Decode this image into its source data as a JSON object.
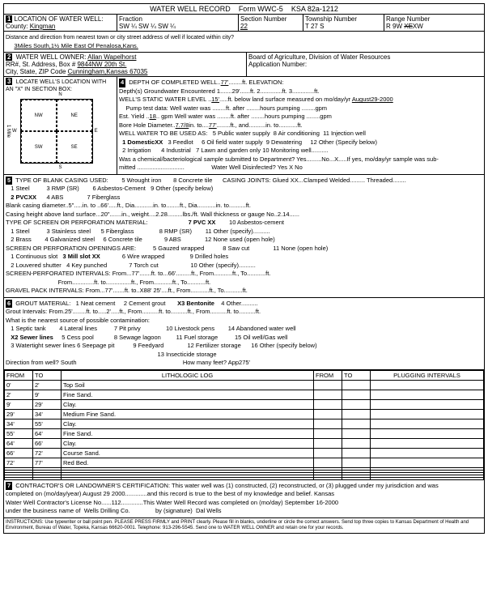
{
  "form_title": "WATER WELL RECORD",
  "form_id": "Form WWC-5",
  "ksa": "KSA 82a-1212",
  "location": {
    "county": "Kingman",
    "fraction": "SW ¼ SW ¼ SW ¼",
    "section": "22",
    "township": "T 27 S",
    "range": "R 9W",
    "direction_note": "3Miles South,1½ Mile East Of Penalosa,Kans."
  },
  "owner": {
    "name": "Allan Wapelhorst",
    "address": "9844NW 20th St.",
    "city": "Cunningham,Kansas 67035",
    "board": "Board of Agriculture, Division of Water Resources",
    "app_no": "Application Number:"
  },
  "section3_title": "LOCATE WELL'S LOCATION WITH AN \"X\" IN SECTION BOX:",
  "well_data": {
    "depth_completed": "77'",
    "elevation_note": "ft. ELEVATION:",
    "depths_gw": "1.......29'......ft. 2.............ft. 3.............ft.",
    "static_level": "15'",
    "static_date": "August29-2000",
    "pump_test": "Well water was ........ft. after ........hours pumping ........gpm",
    "est_yield": "18",
    "bore_dia": "7.7/8",
    "bore_to": "77'",
    "uses": {
      "u1": "1 DomesticXX",
      "u2": "2 Irrigation",
      "u3": "3 Feedlot",
      "u4": "4 Industrial",
      "u5": "5 Public water supply",
      "u6": "6 Oil field water supply",
      "u7": "7 Lawn and garden only",
      "u8": "8 Air conditioning",
      "u9": "9 Dewatering",
      "u10": "10 Monitoring well",
      "u11": "11 Injection well",
      "u12": "12 Other (Specify below)"
    },
    "chem_sample": "Was a chemical/bacteriological sample submitted to Department? Yes.........No...X.....If yes, mo/day/yr sample was sub-",
    "disinfected": "Water Well Disinfected? Yes X    No"
  },
  "casing": {
    "title": "TYPE OF BLANK CASING USED:",
    "c1": "1 Steel",
    "c2": "2 PVCXX",
    "c3": "3 RMP (SR)",
    "c4": "4 ABS",
    "c5": "5 Wrought iron",
    "c6": "6 Asbestos-Cement",
    "c7": "7 Fiberglass",
    "c8": "8 Concrete tile",
    "c9": "9 Other (specify below)",
    "joints": "CASING JOINTS: Glued XX...Clamped     Welded.........     Threaded........",
    "blank_dia": "Blank casing diameter..5\".....in. to ..66'.....ft., Dia...........in. to........ft., Dia...........in. to..........ft.",
    "height_weight": "Casing height above land surface...20\".......in., weight....2.28.........lbs./ft. Wall thickness or gauge No..2.14......",
    "screen_title": "TYPE OF SCREEN OR PERFORATION MATERIAL:",
    "s1": "1 Steel",
    "s2": "2 Brass",
    "s3": "3 Stainless steel",
    "s4": "4 Galvanized steel",
    "s5": "5 Fiberglass",
    "s6": "6 Concrete tile",
    "s7": "7 PVC XX",
    "s8": "8 RMP (SR)",
    "s9": "9 ABS",
    "s10": "10 Asbestos-cement",
    "s11": "11 Other (specify)",
    "s12": "12 None used (open hole)",
    "open_title": "SCREEN OR PERFORATION OPENINGS ARE:",
    "o1": "1 Continuous slot",
    "o2": "2 Louvered shutter",
    "o3": "3 Mill slot XX",
    "o4": "4 Key punched",
    "o5": "5 Gauzed wrapped",
    "o6": "6 Wire wrapped",
    "o7": "7 Torch cut",
    "o8": "8 Saw cut",
    "o9": "9 Drilled holes",
    "o10": "10 Other (specify)",
    "o11": "11 None (open hole)",
    "perf_int": "SCREEN-PERFORATED INTERVALS:   From...77'.......ft. to...66'.........ft., From...........ft., To...........ft.",
    "perf_int2": "                               From.............ft. to...............ft., From...........ft., To...........ft.",
    "gravel": "GRAVEL PACK INTERVALS:      From...77'.......ft. to..X88' 25'....ft., From...........ft., To...........ft."
  },
  "grout": {
    "title": "GROUT MATERIAL:",
    "g1": "1 Neat cement",
    "g2": "2 Cement grout",
    "g3": "X3 Bentonite",
    "g4": "4 Other..........",
    "intervals": "Grout Intervals:  From.25'........ft. to.....2'.....ft., From..........ft. to..........ft., From..........ft. to..........ft.",
    "contam_title": "What is the nearest source of possible contamination:",
    "ct1": "1 Septic tank",
    "ct2": "X2 Sewer lines",
    "ct3": "3 Watertight sewer lines",
    "ct4": "4 Lateral lines",
    "ct5": "5 Cess pool",
    "ct6": "6 Seepage pit",
    "ct7": "7 Pit privy",
    "ct8": "8 Sewage lagoon",
    "ct9": "9 Feedyard",
    "ct10": "10 Livestock pens",
    "ct11": "11 Fuel storage",
    "ct12": "12 Fertilizer storage",
    "ct13": "13 Insecticide storage",
    "ct14": "14 Abandoned water well",
    "ct15": "15 Oil well/Gas well",
    "ct16": "16 Other (specify below)",
    "direction": "Direction from well? South",
    "feet": "How many feet?  App275'"
  },
  "log": {
    "h_from": "FROM",
    "h_to": "TO",
    "h_lith": "LITHOLOGIC LOG",
    "h_plug": "PLUGGING INTERVALS",
    "rows": [
      {
        "f": "0'",
        "t": "2'",
        "d": "Top Soil"
      },
      {
        "f": "2'",
        "t": "9'",
        "d": "Fine Sand."
      },
      {
        "f": "9'",
        "t": "29'",
        "d": "Clay."
      },
      {
        "f": "29'",
        "t": "34'",
        "d": "Medium Fine Sand."
      },
      {
        "f": "34'",
        "t": "55'",
        "d": "Clay."
      },
      {
        "f": "55'",
        "t": "64'",
        "d": "Fine Sand."
      },
      {
        "f": "64'",
        "t": "66'",
        "d": "Clay."
      },
      {
        "f": "66'",
        "t": "72'",
        "d": "Course Sand."
      },
      {
        "f": "72'",
        "t": "77'",
        "d": "Red Bed."
      }
    ]
  },
  "cert": {
    "text": "CONTRACTOR'S OR LANDOWNER'S CERTIFICATION: This water well was (1) constructed, (2) reconstructed, or (3) plugged under my jurisdiction and was",
    "completed": "completed on (mo/day/year)  August 29 2000.............and this record is true to the best of my knowledge and belief. Kansas",
    "license": "Water Well Contractor's License No......112.............This Water Well Record was completed on (mo/day) September 16-2000",
    "business": "under the business name of  Wells Drilling Co.               by (signature)  Dal Wells"
  },
  "instructions": "INSTRUCTIONS: Use typewriter or ball point pen. PLEASE PRESS FIRMLY and PRINT clearly. Please fill in blanks, underline or circle the correct answers. Send top three copies to Kansas Department of Health and Environment, Bureau of Water, Topeka, Kansas 66620-0001. Telephone: 913-296-5545. Send one to WATER WELL OWNER and retain one for your records."
}
